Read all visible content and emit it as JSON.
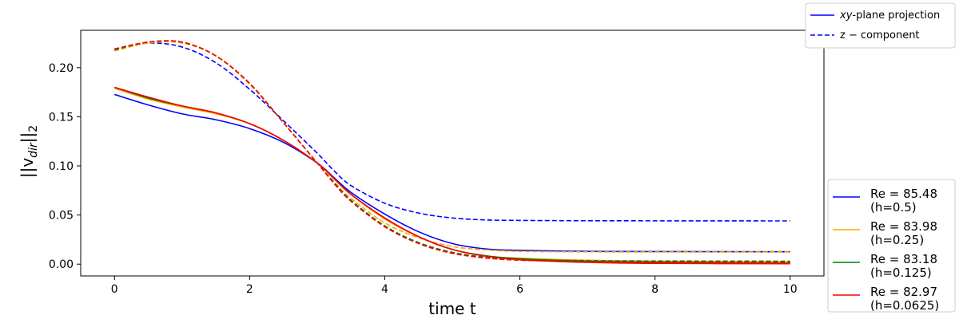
{
  "chart_data": {
    "type": "line",
    "title": "",
    "xlabel": "time t",
    "ylabel": "||v_dir||_2",
    "ylabel_base": "||v",
    "ylabel_sub": "dir",
    "ylabel_tail": "||",
    "ylabel_tail_sub": "2",
    "xlim": [
      -0.5,
      10.5
    ],
    "ylim": [
      -0.012,
      0.238
    ],
    "x_ticks": [
      0,
      2,
      4,
      6,
      8,
      10
    ],
    "x_tick_labels": [
      "0",
      "2",
      "4",
      "6",
      "8",
      "10"
    ],
    "y_ticks": [
      0.0,
      0.05,
      0.1,
      0.15,
      0.2
    ],
    "y_tick_labels": [
      "0.00",
      "0.05",
      "0.10",
      "0.15",
      "0.20"
    ],
    "grid": false,
    "x": [
      0,
      0.5,
      1,
      1.5,
      2,
      2.5,
      3,
      3.25,
      3.5,
      4,
      4.5,
      5,
      5.5,
      6,
      7,
      8,
      10
    ],
    "series": [
      {
        "name": "Re = 85.48 (h=0.5)",
        "color": "#0000ff",
        "xy": [
          0.1727,
          0.162,
          0.153,
          0.147,
          0.138,
          0.124,
          0.103,
          0.088,
          0.073,
          0.051,
          0.033,
          0.021,
          0.0155,
          0.014,
          0.013,
          0.0128,
          0.0126
        ],
        "z": [
          0.219,
          0.225,
          0.221,
          0.205,
          0.178,
          0.146,
          0.113,
          0.095,
          0.08,
          0.062,
          0.052,
          0.047,
          0.045,
          0.0445,
          0.0442,
          0.0441,
          0.044
        ]
      },
      {
        "name": "Re = 83.98 (h=0.25)",
        "color": "#ffa500",
        "xy": [
          0.179,
          0.168,
          0.16,
          0.153,
          0.143,
          0.126,
          0.103,
          0.087,
          0.071,
          0.046,
          0.028,
          0.015,
          0.0085,
          0.006,
          0.004,
          0.003,
          0.0026
        ],
        "z": [
          0.217,
          0.225,
          0.225,
          0.212,
          0.183,
          0.144,
          0.103,
          0.084,
          0.067,
          0.042,
          0.027,
          0.018,
          0.0145,
          0.013,
          0.0125,
          0.0124,
          0.0124
        ]
      },
      {
        "name": "Re = 83.18 (h=0.125)",
        "color": "#008000",
        "xy": [
          0.18,
          0.169,
          0.161,
          0.154,
          0.143,
          0.126,
          0.103,
          0.087,
          0.071,
          0.047,
          0.028,
          0.015,
          0.0085,
          0.0055,
          0.003,
          0.002,
          0.001
        ],
        "z": [
          0.218,
          0.226,
          0.226,
          0.212,
          0.184,
          0.144,
          0.103,
          0.083,
          0.065,
          0.039,
          0.022,
          0.012,
          0.007,
          0.0048,
          0.0035,
          0.0032,
          0.003
        ]
      },
      {
        "name": "Re = 82.97 (h=0.0625)",
        "color": "#ff0000",
        "xy": [
          0.18,
          0.17,
          0.161,
          0.154,
          0.143,
          0.126,
          0.103,
          0.087,
          0.071,
          0.047,
          0.028,
          0.015,
          0.008,
          0.0045,
          0.0018,
          0.0008,
          0.0004
        ],
        "z": [
          0.219,
          0.226,
          0.226,
          0.212,
          0.184,
          0.144,
          0.103,
          0.082,
          0.064,
          0.038,
          0.021,
          0.011,
          0.0062,
          0.004,
          0.0025,
          0.002,
          0.0018
        ]
      }
    ],
    "style_legend": {
      "solid_label_italic": "xy",
      "solid_label_rest": "-plane projection",
      "dashed_label": "z − component"
    },
    "legend_placement": "right"
  }
}
